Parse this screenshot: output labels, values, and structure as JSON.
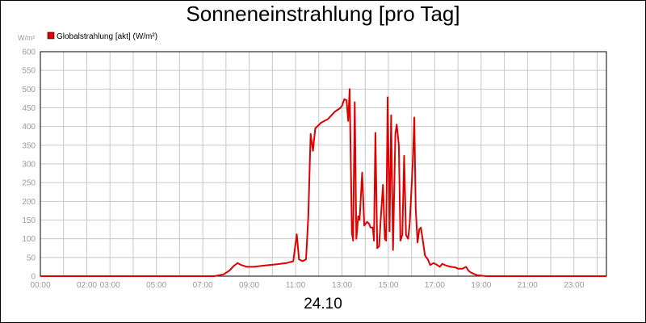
{
  "title": "Sonneneinstrahlung [pro Tag]",
  "date_label": "24.10",
  "colors": {
    "series": "#e00000",
    "grid": "#c8c8c8",
    "axis_text": "#9a9a9a"
  },
  "chart_data": {
    "type": "line",
    "title": "Sonneneinstrahlung [pro Tag]",
    "ylabel": "W/m²",
    "xlabel": "",
    "ylim": [
      0,
      600
    ],
    "xlim": [
      0,
      24.4
    ],
    "grid": true,
    "legend": "top-left",
    "yticks": [
      0,
      50,
      100,
      150,
      200,
      250,
      300,
      350,
      400,
      450,
      500,
      550,
      600
    ],
    "xticks": [
      {
        "x": 0,
        "label": "00:00"
      },
      {
        "x": 2,
        "label": "02:00"
      },
      {
        "x": 3,
        "label": "03:00"
      },
      {
        "x": 5,
        "label": "05:00"
      },
      {
        "x": 7,
        "label": "07:00"
      },
      {
        "x": 9,
        "label": "09:00"
      },
      {
        "x": 11,
        "label": "11:00"
      },
      {
        "x": 13,
        "label": "13:00"
      },
      {
        "x": 15,
        "label": "15:00"
      },
      {
        "x": 17,
        "label": "17:00"
      },
      {
        "x": 19,
        "label": "19:00"
      },
      {
        "x": 21,
        "label": "21:00"
      },
      {
        "x": 23,
        "label": "23:00"
      }
    ],
    "vgrid": [
      0,
      1,
      2,
      3,
      4,
      5,
      6,
      7,
      8,
      9,
      10,
      11,
      12,
      13,
      14,
      15,
      16,
      17,
      18,
      19,
      20,
      21,
      22,
      23,
      24
    ],
    "series": [
      {
        "name": "Globalstrahlung [akt] (W/m²)",
        "color": "#e00000",
        "points": [
          [
            0,
            0
          ],
          [
            7.5,
            0
          ],
          [
            7.9,
            5
          ],
          [
            8.15,
            15
          ],
          [
            8.35,
            28
          ],
          [
            8.5,
            35
          ],
          [
            8.65,
            30
          ],
          [
            8.9,
            25
          ],
          [
            9.2,
            25
          ],
          [
            9.6,
            28
          ],
          [
            10.2,
            32
          ],
          [
            10.6,
            35
          ],
          [
            10.9,
            40
          ],
          [
            11.05,
            112
          ],
          [
            11.15,
            45
          ],
          [
            11.3,
            40
          ],
          [
            11.45,
            45
          ],
          [
            11.55,
            160
          ],
          [
            11.65,
            380
          ],
          [
            11.75,
            335
          ],
          [
            11.85,
            395
          ],
          [
            12.1,
            410
          ],
          [
            12.4,
            420
          ],
          [
            12.7,
            440
          ],
          [
            12.9,
            448
          ],
          [
            13.0,
            455
          ],
          [
            13.1,
            473
          ],
          [
            13.2,
            470
          ],
          [
            13.27,
            415
          ],
          [
            13.33,
            500
          ],
          [
            13.43,
            115
          ],
          [
            13.48,
            95
          ],
          [
            13.55,
            465
          ],
          [
            13.62,
            100
          ],
          [
            13.7,
            160
          ],
          [
            13.76,
            150
          ],
          [
            13.87,
            277
          ],
          [
            13.96,
            135
          ],
          [
            14.08,
            145
          ],
          [
            14.17,
            140
          ],
          [
            14.23,
            130
          ],
          [
            14.33,
            130
          ],
          [
            14.38,
            95
          ],
          [
            14.44,
            383
          ],
          [
            14.52,
            75
          ],
          [
            14.6,
            80
          ],
          [
            14.68,
            160
          ],
          [
            14.77,
            244
          ],
          [
            14.85,
            100
          ],
          [
            14.9,
            95
          ],
          [
            14.97,
            478
          ],
          [
            15.05,
            120
          ],
          [
            15.12,
            430
          ],
          [
            15.2,
            70
          ],
          [
            15.3,
            380
          ],
          [
            15.36,
            405
          ],
          [
            15.45,
            350
          ],
          [
            15.52,
            95
          ],
          [
            15.6,
            110
          ],
          [
            15.68,
            322
          ],
          [
            15.76,
            110
          ],
          [
            15.85,
            100
          ],
          [
            15.92,
            140
          ],
          [
            16.05,
            300
          ],
          [
            16.12,
            424
          ],
          [
            16.18,
            180
          ],
          [
            16.26,
            90
          ],
          [
            16.33,
            125
          ],
          [
            16.4,
            130
          ],
          [
            16.5,
            90
          ],
          [
            16.58,
            55
          ],
          [
            16.7,
            45
          ],
          [
            16.8,
            30
          ],
          [
            16.95,
            35
          ],
          [
            17.1,
            30
          ],
          [
            17.22,
            25
          ],
          [
            17.32,
            33
          ],
          [
            17.5,
            28
          ],
          [
            17.7,
            25
          ],
          [
            17.9,
            23
          ],
          [
            18.0,
            20
          ],
          [
            18.2,
            20
          ],
          [
            18.35,
            25
          ],
          [
            18.45,
            15
          ],
          [
            18.55,
            10
          ],
          [
            18.8,
            3
          ],
          [
            19.2,
            0
          ],
          [
            24.4,
            0
          ]
        ]
      }
    ]
  }
}
